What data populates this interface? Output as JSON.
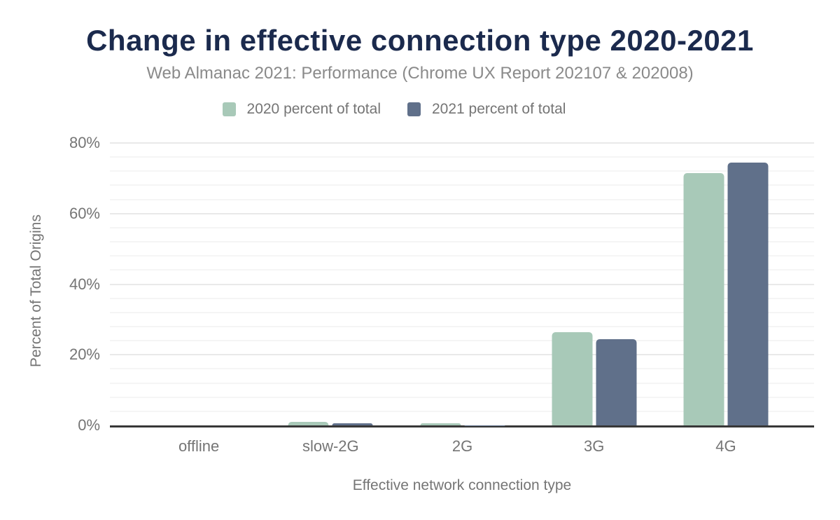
{
  "header": {
    "title": "Change in effective connection type 2020-2021",
    "subtitle": "Web Almanac 2021: Performance (Chrome UX Report 202107 & 202008)"
  },
  "chart_data": {
    "type": "bar",
    "title": "Change in effective connection type 2020-2021",
    "subtitle": "Web Almanac 2021: Performance (Chrome UX Report 202107 & 202008)",
    "categories": [
      "offline",
      "slow-2G",
      "2G",
      "3G",
      "4G"
    ],
    "series": [
      {
        "name": "2020 percent of total",
        "color": "#a8c9b8",
        "values": [
          0.0,
          0.9,
          0.5,
          26.5,
          71.4
        ]
      },
      {
        "name": "2021 percent of total",
        "color": "#60708a",
        "values": [
          0.0,
          0.5,
          0.1,
          24.5,
          74.4
        ]
      }
    ],
    "xlabel": "Effective network connection type",
    "ylabel": "Percent of Total Origins",
    "ylim": [
      0,
      80
    ],
    "yticks": [
      0,
      20,
      40,
      60,
      80
    ],
    "ytick_labels": [
      "0%",
      "20%",
      "40%",
      "60%",
      "80%"
    ],
    "grid": {
      "horizontal": true,
      "minor_step": 4,
      "major_step": 20
    },
    "legend_position": "top"
  },
  "colors": {
    "title": "#1b2a4d",
    "subtitle": "#8a8a8a",
    "axis_text": "#757575",
    "axis_line": "#383838",
    "background": "#ffffff"
  }
}
